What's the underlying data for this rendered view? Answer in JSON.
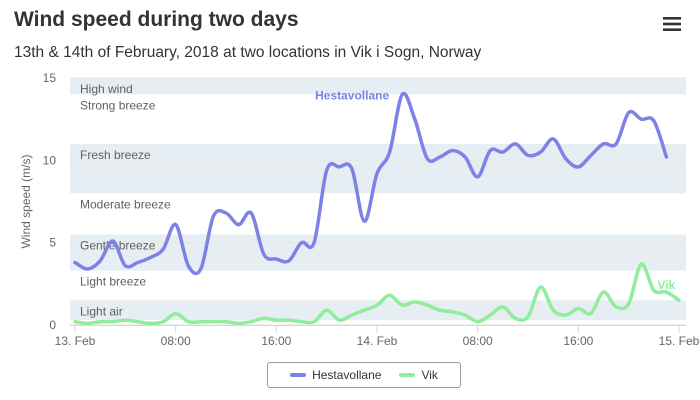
{
  "title": "Wind speed during two days",
  "subtitle": "13th & 14th of February, 2018 at two locations in Vik i Sogn, Norway",
  "menu_icon": "hamburger-menu-icon",
  "chart_data": {
    "type": "line",
    "ylabel": "Wind speed (m/s)",
    "ylim": [
      0,
      15
    ],
    "yticks": [
      0,
      5,
      10,
      15
    ],
    "xlim": [
      "13. Feb 00:00",
      "15. Feb 00:00"
    ],
    "xticks": [
      {
        "hour": 0,
        "label": "13. Feb"
      },
      {
        "hour": 8,
        "label": "08:00"
      },
      {
        "hour": 16,
        "label": "16:00"
      },
      {
        "hour": 24,
        "label": "14. Feb"
      },
      {
        "hour": 32,
        "label": "08:00"
      },
      {
        "hour": 40,
        "label": "16:00"
      },
      {
        "hour": 48,
        "label": "15. Feb"
      }
    ],
    "plot_bands": [
      {
        "from": 0.3,
        "to": 1.5,
        "label": "Light air",
        "shaded": true
      },
      {
        "from": 1.5,
        "to": 3.3,
        "label": "Light breeze",
        "shaded": false
      },
      {
        "from": 3.3,
        "to": 5.5,
        "label": "Gentle breeze",
        "shaded": true
      },
      {
        "from": 5.5,
        "to": 8,
        "label": "Moderate breeze",
        "shaded": false
      },
      {
        "from": 8,
        "to": 11,
        "label": "Fresh breeze",
        "shaded": true
      },
      {
        "from": 11,
        "to": 14,
        "label": "Strong breeze",
        "shaded": false
      },
      {
        "from": 14,
        "to": 15,
        "label": "High wind",
        "shaded": true
      }
    ],
    "x_hours": [
      0,
      1,
      2,
      3,
      4,
      5,
      6,
      7,
      8,
      9,
      10,
      11,
      12,
      13,
      14,
      15,
      16,
      17,
      18,
      19,
      20,
      21,
      22,
      23,
      24,
      25,
      26,
      27,
      28,
      29,
      30,
      31,
      32,
      33,
      34,
      35,
      36,
      37,
      38,
      39,
      40,
      41,
      42,
      43,
      44,
      45,
      46,
      47,
      48
    ],
    "series": [
      {
        "name": "Hestavollane",
        "color": "#7d82e6",
        "values": [
          3.8,
          3.4,
          3.9,
          5.1,
          3.6,
          3.8,
          4.1,
          4.6,
          6.1,
          3.6,
          3.4,
          6.6,
          6.8,
          6.1,
          6.8,
          4.3,
          4.0,
          3.9,
          5.0,
          5.0,
          9.4,
          9.6,
          9.5,
          6.3,
          9.2,
          10.5,
          14.0,
          12.5,
          10.1,
          10.2,
          10.6,
          10.2,
          9.0,
          10.6,
          10.5,
          11.0,
          10.3,
          10.5,
          11.3,
          10.1,
          9.6,
          10.3,
          11.0,
          11.0,
          12.9,
          12.5,
          12.4,
          10.2,
          null
        ],
        "end_label": "Hestavollane",
        "end_label_at_hour": 26
      },
      {
        "name": "Vik",
        "color": "#90ed9c",
        "values": [
          0.2,
          0.1,
          0.2,
          0.2,
          0.3,
          0.2,
          0.1,
          0.2,
          0.7,
          0.2,
          0.2,
          0.2,
          0.2,
          0.1,
          0.2,
          0.4,
          0.3,
          0.3,
          0.2,
          0.2,
          0.9,
          0.3,
          0.6,
          0.9,
          1.2,
          1.8,
          1.2,
          1.4,
          1.2,
          0.9,
          0.8,
          0.6,
          0.2,
          0.6,
          1.1,
          0.4,
          0.5,
          2.3,
          0.9,
          0.6,
          1.0,
          0.7,
          2.0,
          1.1,
          1.3,
          3.7,
          2.1,
          2.0,
          1.5
        ],
        "end_label": "Vik",
        "end_label_at_hour": 47
      }
    ],
    "legend": {
      "position": "bottom-center"
    }
  }
}
